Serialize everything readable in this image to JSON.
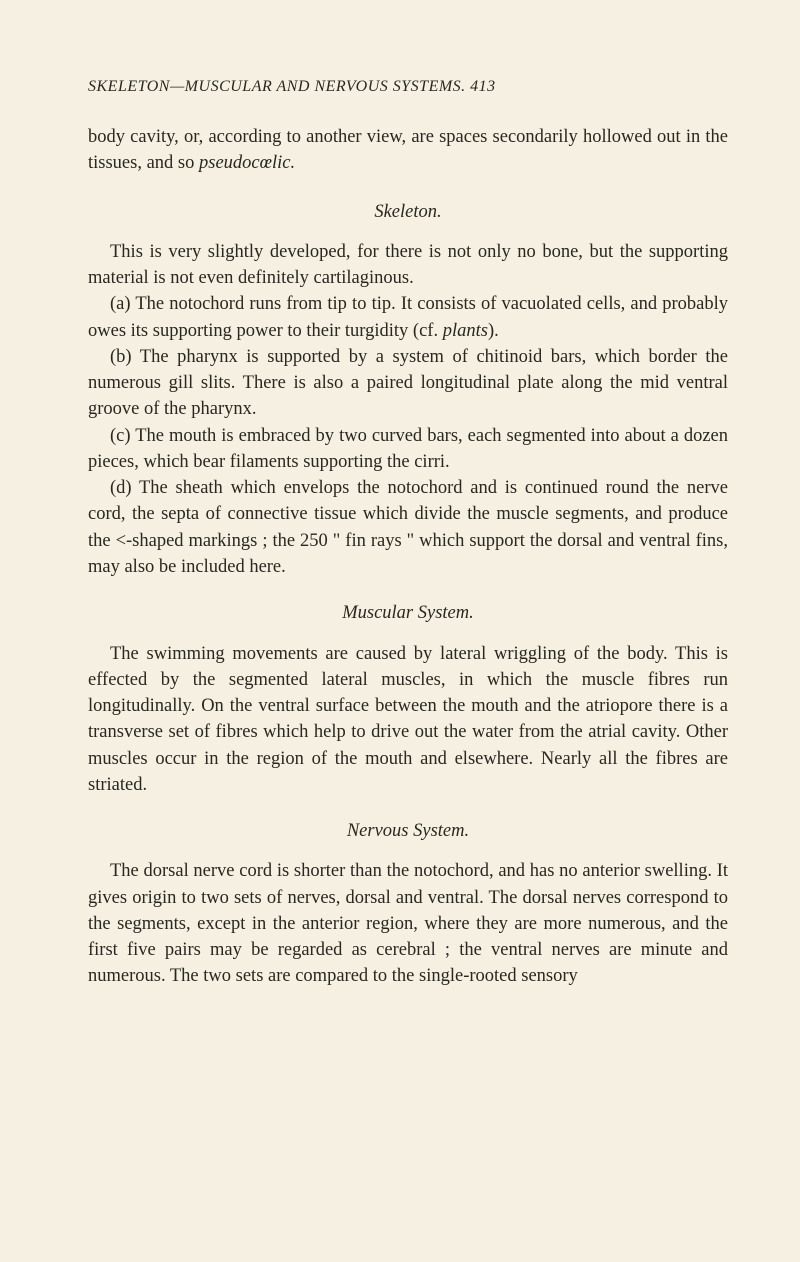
{
  "header": {
    "text": "SKELETON—MUSCULAR AND NERVOUS SYSTEMS. 413"
  },
  "intro": {
    "p1": "body cavity, or, according to another view, are spaces secondarily hollowed out in the tissues, and so ",
    "p1_italic": "pseudocœlic."
  },
  "skeleton": {
    "title": "Skeleton.",
    "p1": "This is very slightly developed, for there is not only no bone, but the supporting material is not even definitely cartilaginous.",
    "a": "(a) The notochord runs from tip to tip. It consists of vacuolated cells, and probably owes its supporting power to their turgidity (cf. ",
    "a_italic": "plants",
    "a_end": ").",
    "b": "(b) The pharynx is supported by a system of chitinoid bars, which border the numerous gill slits. There is also a paired longitudinal plate along the mid ventral groove of the pharynx.",
    "c": "(c) The mouth is embraced by two curved bars, each segmented into about a dozen pieces, which bear filaments supporting the cirri.",
    "d": "(d) The sheath which envelops the notochord and is continued round the nerve cord, the septa of connective tissue which divide the muscle segments, and produce the <-shaped markings ; the 250 \" fin rays \" which support the dorsal and ventral fins, may also be included here."
  },
  "muscular": {
    "title": "Muscular System.",
    "p1": "The swimming movements are caused by lateral wriggling of the body. This is effected by the segmented lateral muscles, in which the muscle fibres run longitudinally. On the ventral surface between the mouth and the atriopore there is a transverse set of fibres which help to drive out the water from the atrial cavity. Other muscles occur in the region of the mouth and elsewhere. Nearly all the fibres are striated."
  },
  "nervous": {
    "title": "Nervous System.",
    "p1": "The dorsal nerve cord is shorter than the notochord, and has no anterior swelling. It gives origin to two sets of nerves, dorsal and ventral. The dorsal nerves correspond to the segments, except in the anterior region, where they are more numerous, and the first five pairs may be regarded as cerebral ; the ventral nerves are minute and numerous. The two sets are compared to the single-rooted sensory"
  }
}
